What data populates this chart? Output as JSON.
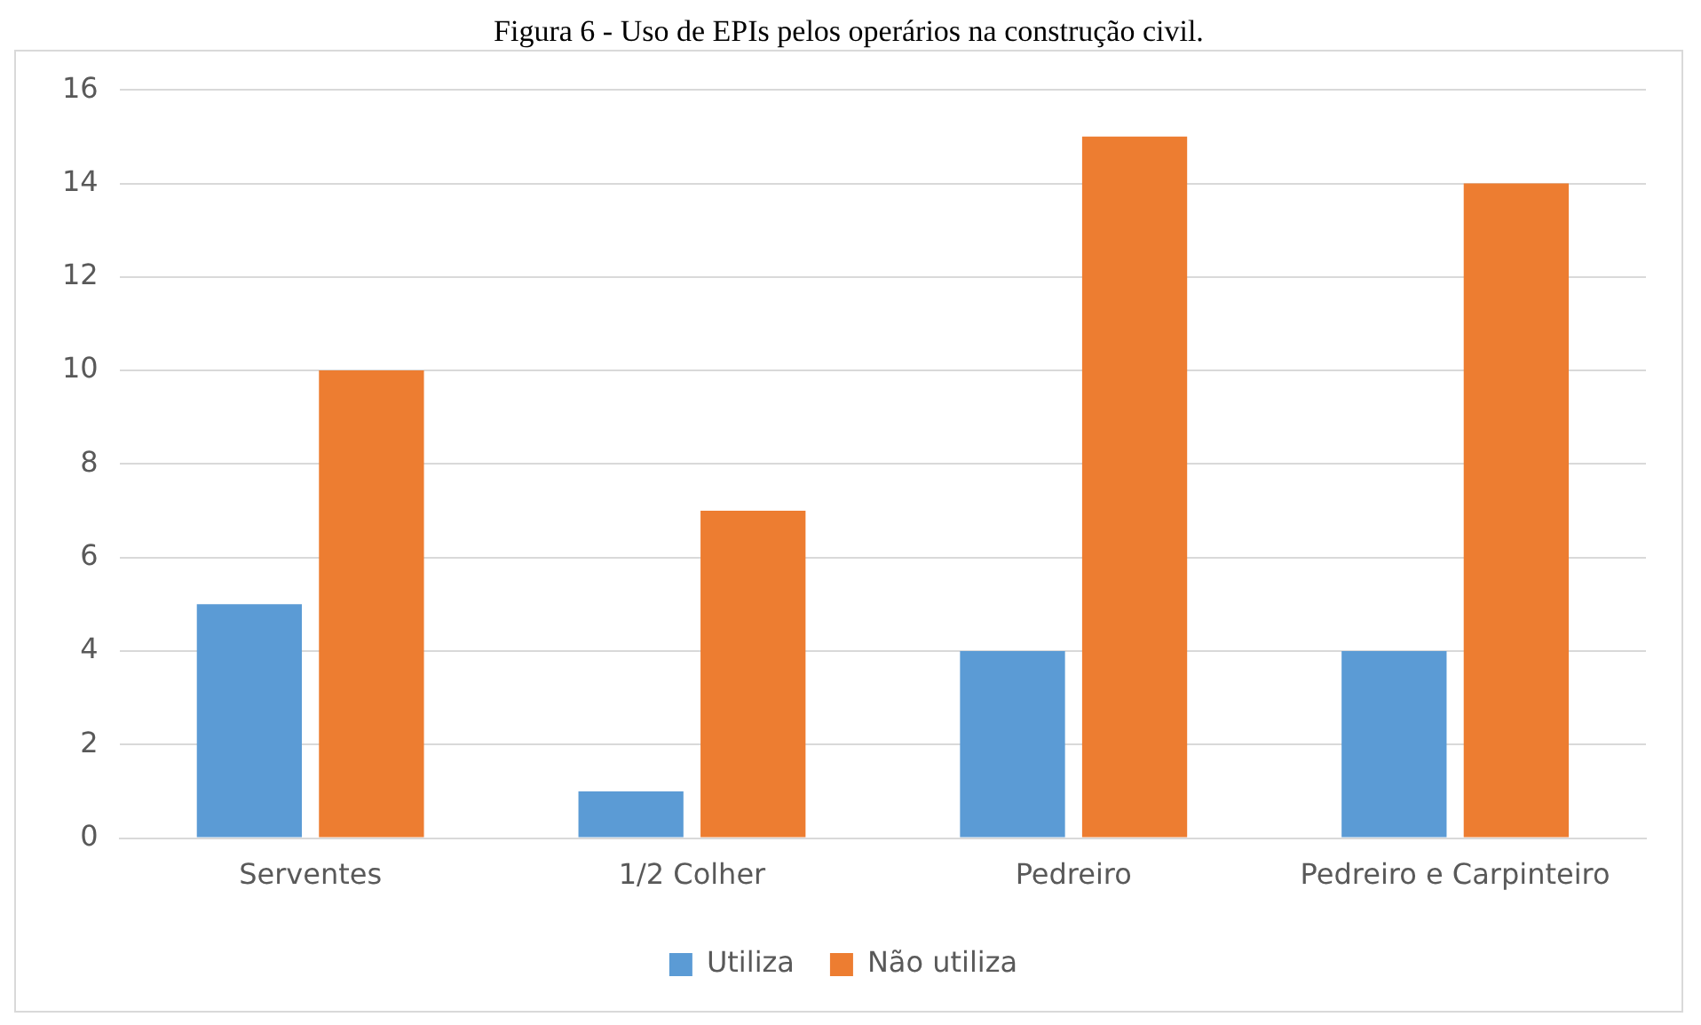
{
  "chart_data": {
    "type": "bar",
    "title": "Figura 6 - Uso de EPIs pelos operários na construção civil.",
    "categories": [
      "Serventes",
      "1/2 Colher",
      "Pedreiro",
      "Pedreiro e Carpinteiro"
    ],
    "series": [
      {
        "name": "Utiliza",
        "color": "#5b9bd5",
        "values": [
          5,
          1,
          4,
          4
        ]
      },
      {
        "name": "Não utiliza",
        "color": "#ed7d31",
        "values": [
          10,
          7,
          15,
          14
        ]
      }
    ],
    "ylim": [
      0,
      16
    ],
    "yticks": [
      0,
      2,
      4,
      6,
      8,
      10,
      12,
      14,
      16
    ],
    "grid": "y",
    "legend": "bottom"
  }
}
